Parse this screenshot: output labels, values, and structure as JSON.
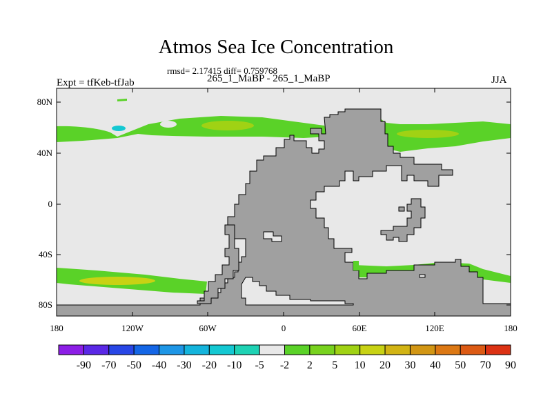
{
  "title": "Atmos Sea Ice Concentration",
  "stats_text": "rmsd= 2.17415 diff= 0.759768",
  "runs_text": "265_1_MaBP - 265_1_MaBP",
  "expt_text": "Expt = tfKeb-tfJab",
  "season": "JJA",
  "map": {
    "lon_ticks": [
      "180",
      "120W",
      "60W",
      "0",
      "60E",
      "120E",
      "180"
    ],
    "lat_ticks": [
      "80N",
      "40N",
      "0",
      "40S",
      "80S"
    ],
    "land_color": "#a0a0a0",
    "ocean_color": "#e8e8e8"
  },
  "colorbar": {
    "labels": [
      "-90",
      "-70",
      "-50",
      "-40",
      "-30",
      "-20",
      "-10",
      "-5",
      "-2",
      "2",
      "5",
      "10",
      "20",
      "30",
      "40",
      "50",
      "70",
      "90"
    ],
    "colors": [
      "#8c1ee6",
      "#5a28e6",
      "#2846e6",
      "#1466e6",
      "#1e96e6",
      "#14b4dc",
      "#14c8d2",
      "#1ed2b4",
      "#e8e8e8",
      "#5ad228",
      "#78d21e",
      "#a0d214",
      "#c8d214",
      "#d2b414",
      "#d29614",
      "#dc7814",
      "#dc5a14",
      "#dc3214"
    ]
  }
}
